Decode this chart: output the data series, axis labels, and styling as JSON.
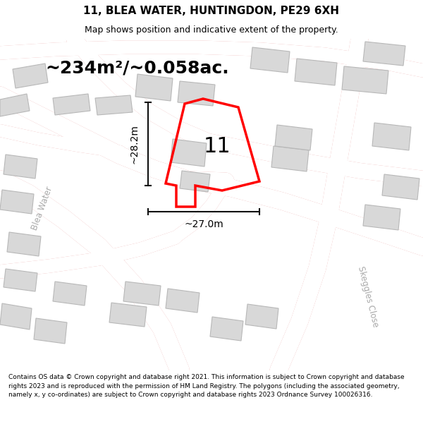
{
  "title": "11, BLEA WATER, HUNTINGDON, PE29 6XH",
  "subtitle": "Map shows position and indicative extent of the property.",
  "area_text": "~234m²/~0.058ac.",
  "dim_width": "~27.0m",
  "dim_height": "~28.2m",
  "property_number": "11",
  "footer": "Contains OS data © Crown copyright and database right 2021. This information is subject to Crown copyright and database rights 2023 and is reproduced with the permission of HM Land Registry. The polygons (including the associated geometry, namely x, y co-ordinates) are subject to Crown copyright and database rights 2023 Ordnance Survey 100026316.",
  "map_bg": "#eeecec",
  "road_color": "#e8a0a0",
  "building_color": "#d8d8d8",
  "building_edge": "#b8b8b8",
  "property_color": "red",
  "dim_line_color": "#111111",
  "street_label_color": "#aaaaaa",
  "title_fontsize": 11,
  "subtitle_fontsize": 9,
  "area_fontsize": 18,
  "dim_fontsize": 10,
  "footer_fontsize": 6.5
}
